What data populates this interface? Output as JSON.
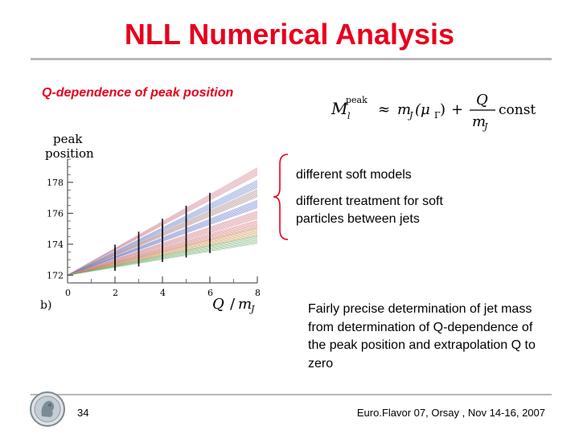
{
  "slide": {
    "title": "NLL Numerical Analysis",
    "subtitle": "Q-dependence of peak position",
    "annotation_1": "different soft models",
    "annotation_2": "different treatment for soft particles between jets",
    "description": "Fairly precise determination of jet mass from determination of Q-dependence of the peak position and extrapolation Q to zero",
    "page_number": "34",
    "footer": "Euro.Flavor 07, Orsay , Nov 14-16, 2007"
  },
  "formula": {
    "M_text": "M",
    "sub_l": "l",
    "sup_peak": "peak",
    "approx": "≈",
    "mj_text": "m",
    "mj_sub": "J",
    "mu_text": "(μ",
    "mu_sub": "Γ",
    "mu_close": ")",
    "plus": "+",
    "num": "Q",
    "den_text": "m",
    "den_sub": "J",
    "const": "const"
  },
  "chart_data": {
    "type": "line",
    "ylabel_line1": "peak",
    "ylabel_line2": "position",
    "xlabel_Q": "Q",
    "xlabel_slash": "/",
    "xlabel_m": "m",
    "xlabel_sub": "J",
    "panel_label": "b)",
    "xlim": [
      0,
      8
    ],
    "ylim": [
      171.5,
      179.5
    ],
    "x_ticks": [
      "0",
      "2",
      "4",
      "6",
      "8"
    ],
    "y_ticks": [
      "172",
      "174",
      "176",
      "178"
    ],
    "intercept": 172.0,
    "series": [
      {
        "color": "#c98a94",
        "band": "#f2c7cf",
        "end_value": 178.7
      },
      {
        "color": "#7f8fc8",
        "band": "#c3cdf0",
        "end_value": 177.9
      },
      {
        "color": "#9a8080",
        "band": "#e7d4d4",
        "end_value": 177.3
      },
      {
        "color": "#6b78c0",
        "band": "#c9cff0",
        "end_value": 176.6
      },
      {
        "color": "#c98a94",
        "band": "#f0c4cc",
        "end_value": 175.9
      },
      {
        "color": "#d07878",
        "band": "#f3c8c8",
        "end_value": 175.3
      },
      {
        "color": "#c09050",
        "band": "#f0dcc0",
        "end_value": 174.8
      },
      {
        "color": "#6aa86a",
        "band": "#cfe9cf",
        "end_value": 174.3
      }
    ]
  }
}
